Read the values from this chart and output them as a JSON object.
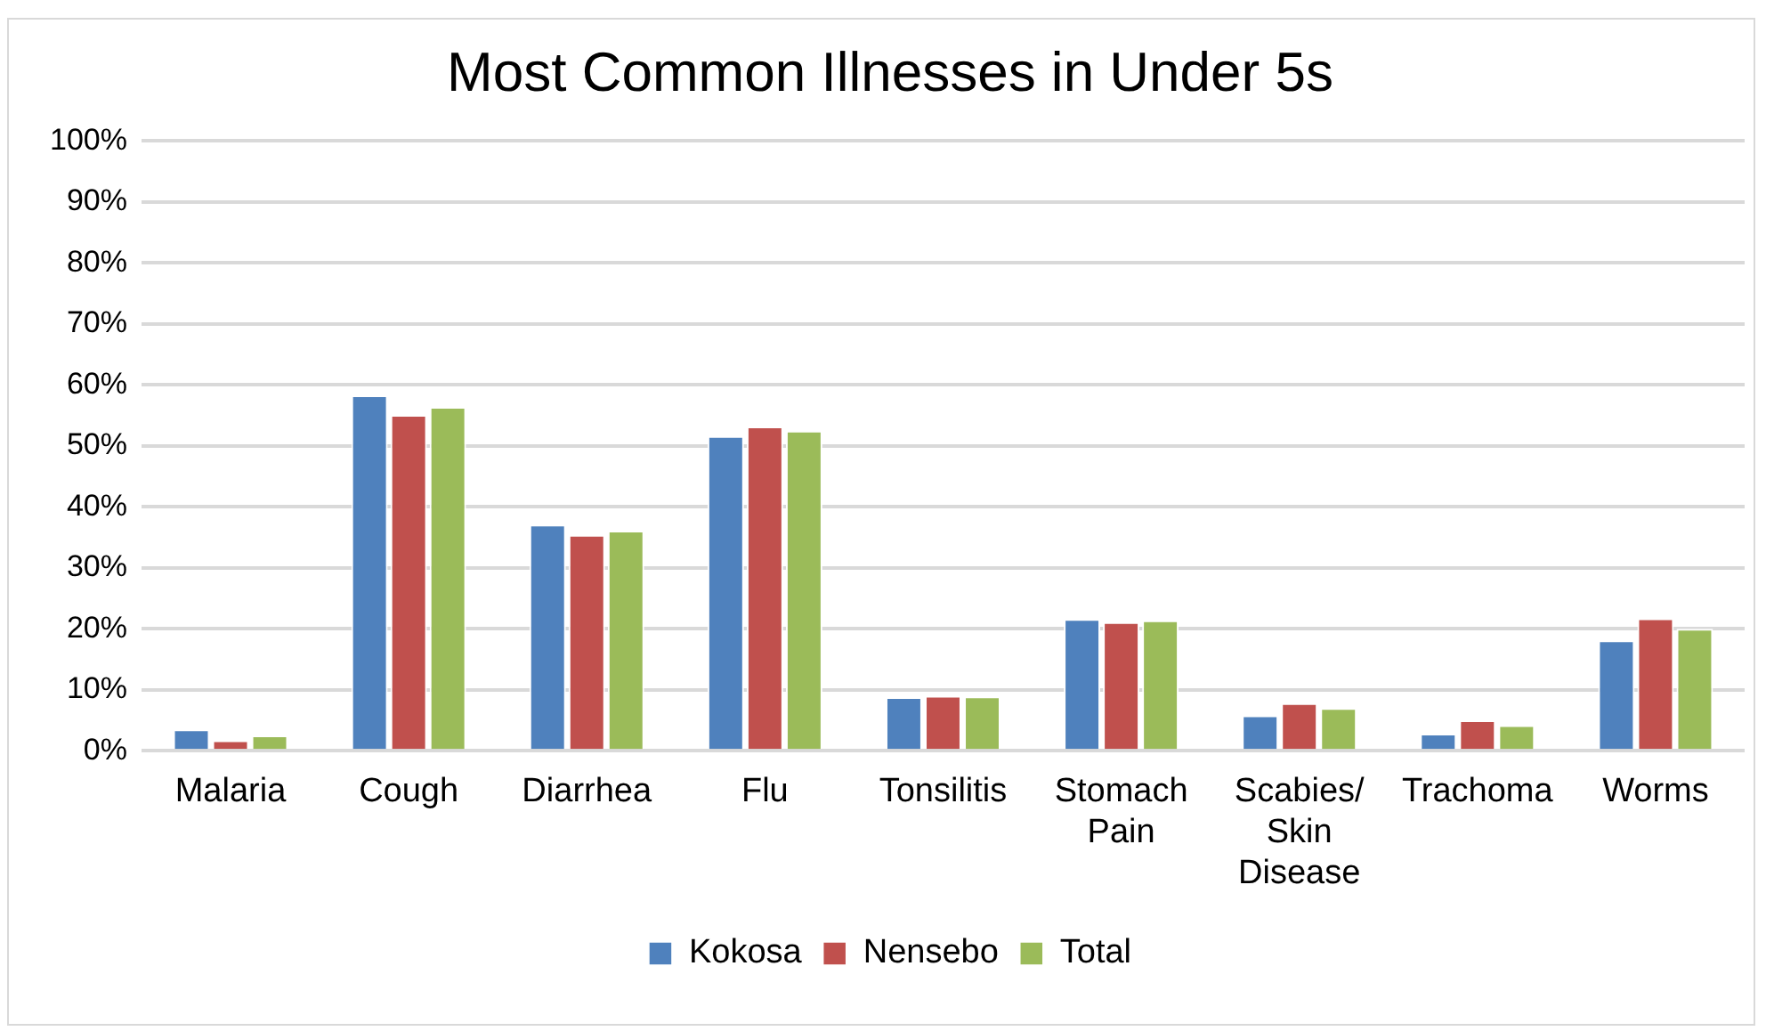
{
  "chart_data": {
    "type": "bar",
    "title": "Most Common Illnesses in Under 5s",
    "categories": [
      "Malaria",
      "Cough",
      "Diarrhea",
      "Flu",
      "Tonsilitis",
      "Stomach Pain",
      "Scabies/ Skin Disease",
      "Trachoma",
      "Worms"
    ],
    "series": [
      {
        "name": "Kokosa",
        "color": "#4f81bd",
        "values": [
          3.5,
          58.3,
          37.1,
          51.6,
          8.8,
          21.6,
          5.8,
          2.8,
          18.1
        ]
      },
      {
        "name": "Nensebo",
        "color": "#c0504d",
        "values": [
          1.7,
          55.1,
          35.4,
          53.2,
          9.0,
          21.1,
          7.8,
          5.0,
          21.7
        ]
      },
      {
        "name": "Total",
        "color": "#9bbb59",
        "values": [
          2.5,
          56.4,
          36.1,
          52.5,
          8.9,
          21.4,
          7.0,
          4.2,
          20.0
        ]
      }
    ],
    "ylim": [
      0,
      100
    ],
    "yticks": [
      {
        "value": 0,
        "label": "0%"
      },
      {
        "value": 10,
        "label": "10%"
      },
      {
        "value": 20,
        "label": "20%"
      },
      {
        "value": 30,
        "label": "30%"
      },
      {
        "value": 40,
        "label": "40%"
      },
      {
        "value": 50,
        "label": "50%"
      },
      {
        "value": 60,
        "label": "60%"
      },
      {
        "value": 70,
        "label": "70%"
      },
      {
        "value": 80,
        "label": "80%"
      },
      {
        "value": 90,
        "label": "90%"
      },
      {
        "value": 100,
        "label": "100%"
      }
    ],
    "grid": "y",
    "legend": "bottom"
  }
}
